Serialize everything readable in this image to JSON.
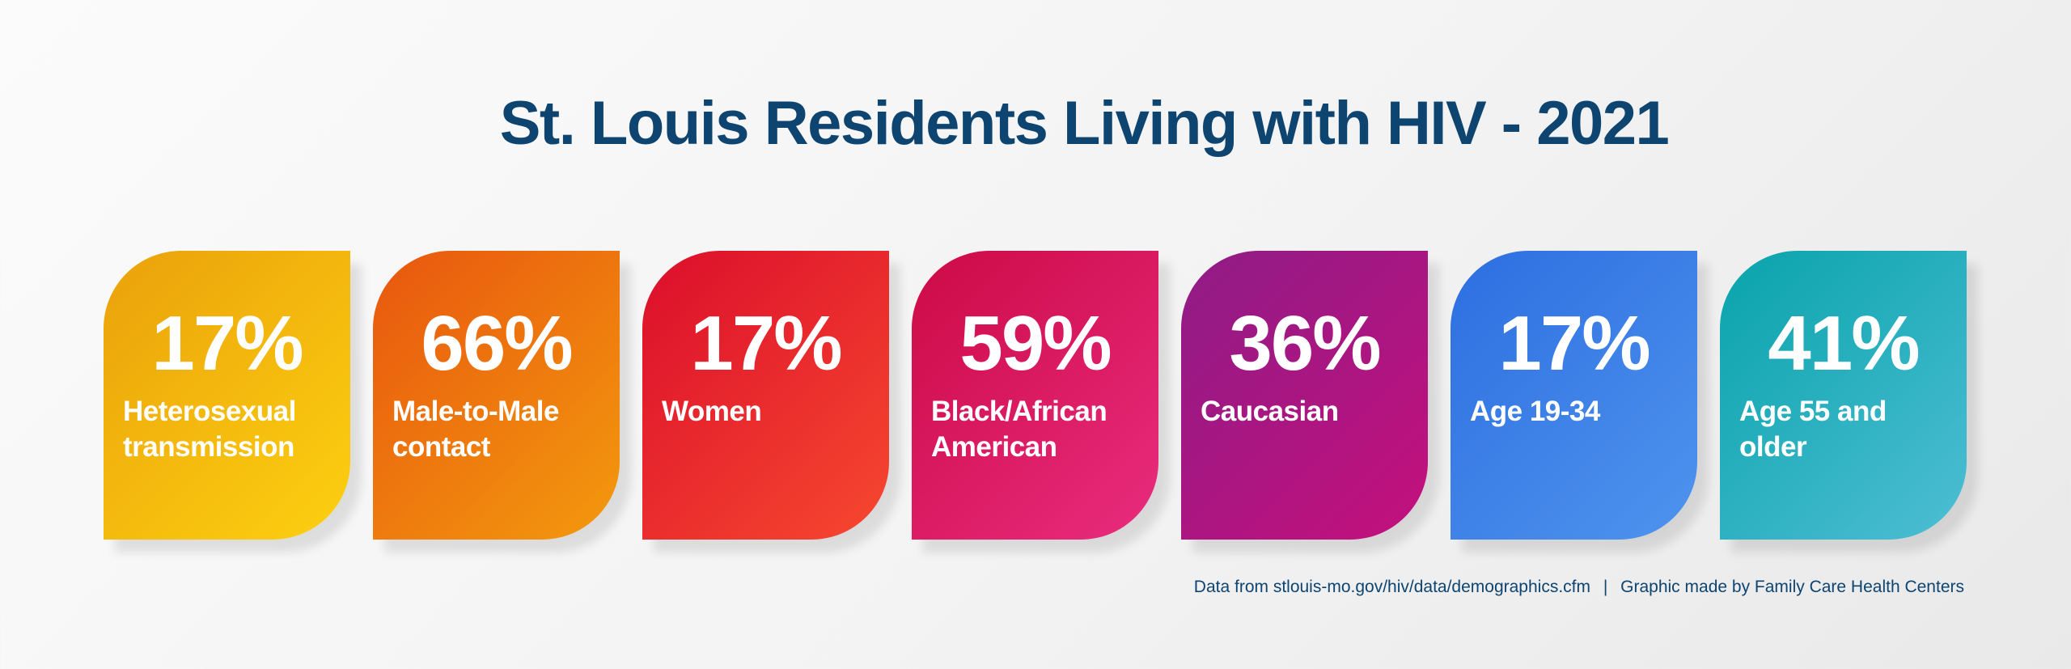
{
  "title": "St. Louis Residents Living with HIV - 2021",
  "cards": [
    {
      "value": "17%",
      "label": "Heterosexual transmission",
      "color_start": "#eaa10b",
      "color_end": "#fdd010"
    },
    {
      "value": "66%",
      "label": "Male-to-Male contact",
      "color_start": "#e8560f",
      "color_end": "#f39a0d"
    },
    {
      "value": "17%",
      "label": "Women",
      "color_start": "#dc0e2c",
      "color_end": "#f6482e"
    },
    {
      "value": "59%",
      "label": "Black/African American",
      "color_start": "#cc0a46",
      "color_end": "#e92c7e"
    },
    {
      "value": "36%",
      "label": "Caucasian",
      "color_start": "#8f1c86",
      "color_end": "#c4107c"
    },
    {
      "value": "17%",
      "label": "Age 19-34",
      "color_start": "#2d6ee0",
      "color_end": "#4f94ee"
    },
    {
      "value": "41%",
      "label": "Age 55 and older",
      "color_start": "#08a3ab",
      "color_end": "#4ebed4"
    }
  ],
  "footer": {
    "source": "Data from stlouis-mo.gov/hiv/data/demographics.cfm",
    "separator": "|",
    "credit": "Graphic made by Family Care Health Centers"
  }
}
